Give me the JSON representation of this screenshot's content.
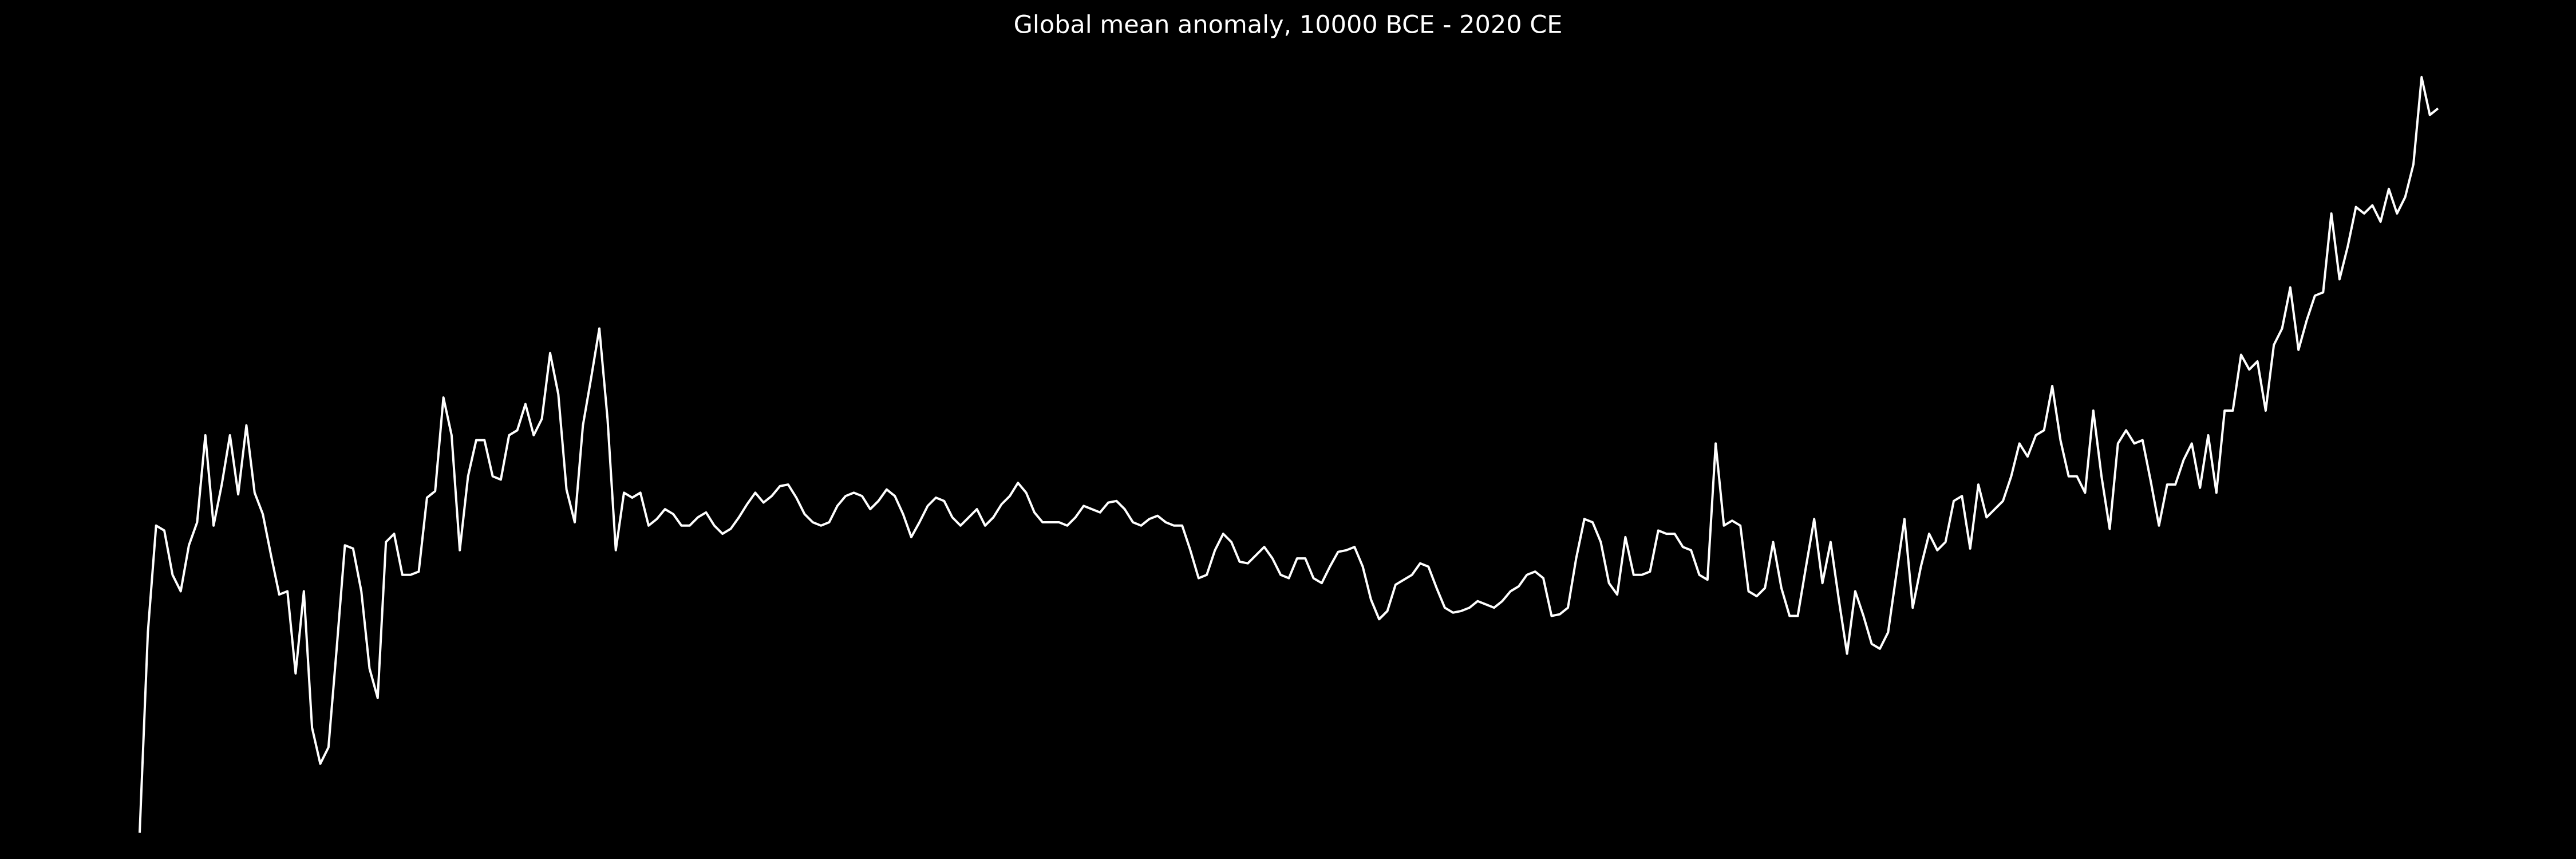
{
  "chart_data": {
    "type": "line",
    "title": "Global mean anomaly, 10000 BCE - 2020 CE",
    "color": "#ffffff",
    "xlim": [
      -10000,
      2020
    ],
    "ylim": [
      -2.23,
      3
    ],
    "values": [
      -2.07,
      -0.85,
      -0.2,
      -0.23,
      -0.5,
      -0.6,
      -0.32,
      -0.18,
      0.35,
      -0.2,
      0.05,
      0.35,
      -0.01,
      0.41,
      0,
      -0.13,
      -0.38,
      -0.62,
      -0.6,
      -1.1,
      -0.6,
      -1.43,
      -1.65,
      -1.55,
      -0.95,
      -0.32,
      -0.34,
      -0.6,
      -1.07,
      -1.25,
      -0.3,
      -0.25,
      -0.5,
      -0.5,
      -0.48,
      -0.03,
      0.01,
      0.58,
      0.35,
      -0.35,
      0.1,
      0.32,
      0.32,
      0.1,
      0.08,
      0.35,
      0.38,
      0.54,
      0.35,
      0.45,
      0.85,
      0.6,
      0.02,
      -0.18,
      0.41,
      0.7,
      1.0,
      0.45,
      -0.35,
      0,
      -0.03,
      0,
      -0.2,
      -0.16,
      -0.1,
      -0.13,
      -0.2,
      -0.2,
      -0.15,
      -0.12,
      -0.2,
      -0.25,
      -0.22,
      -0.15,
      -0.07,
      0,
      -0.06,
      -0.02,
      0.04,
      0.05,
      -0.03,
      -0.13,
      -0.18,
      -0.2,
      -0.18,
      -0.08,
      -0.02,
      0,
      -0.02,
      -0.1,
      -0.05,
      0.02,
      -0.02,
      -0.13,
      -0.27,
      -0.18,
      -0.08,
      -0.03,
      -0.05,
      -0.15,
      -0.2,
      -0.15,
      -0.1,
      -0.2,
      -0.15,
      -0.07,
      -0.02,
      0.06,
      0,
      -0.12,
      -0.18,
      -0.18,
      -0.18,
      -0.2,
      -0.15,
      -0.08,
      -0.1,
      -0.12,
      -0.06,
      -0.05,
      -0.1,
      -0.18,
      -0.2,
      -0.16,
      -0.14,
      -0.18,
      -0.2,
      -0.2,
      -0.35,
      -0.52,
      -0.5,
      -0.35,
      -0.25,
      -0.3,
      -0.42,
      -0.43,
      -0.38,
      -0.33,
      -0.4,
      -0.5,
      -0.52,
      -0.4,
      -0.4,
      -0.52,
      -0.55,
      -0.45,
      -0.36,
      -0.35,
      -0.33,
      -0.45,
      -0.65,
      -0.77,
      -0.72,
      -0.56,
      -0.53,
      -0.5,
      -0.43,
      -0.45,
      -0.58,
      -0.7,
      -0.73,
      -0.72,
      -0.7,
      -0.66,
      -0.68,
      -0.7,
      -0.66,
      -0.6,
      -0.57,
      -0.5,
      -0.48,
      -0.52,
      -0.75,
      -0.74,
      -0.7,
      -0.4,
      -0.16,
      -0.18,
      -0.3,
      -0.55,
      -0.62,
      -0.27,
      -0.5,
      -0.5,
      -0.48,
      -0.23,
      -0.25,
      -0.25,
      -0.33,
      -0.35,
      -0.5,
      -0.53,
      0.3,
      -0.2,
      -0.17,
      -0.2,
      -0.6,
      -0.63,
      -0.58,
      -0.3,
      -0.58,
      -0.75,
      -0.75,
      -0.45,
      -0.16,
      -0.55,
      -0.3,
      -0.65,
      -0.98,
      -0.6,
      -0.75,
      -0.92,
      -0.95,
      -0.85,
      -0.5,
      -0.16,
      -0.7,
      -0.45,
      -0.25,
      -0.35,
      -0.3,
      -0.05,
      -0.02,
      -0.34,
      0.05,
      -0.15,
      -0.1,
      -0.05,
      0.1,
      0.3,
      0.22,
      0.35,
      0.38,
      0.65,
      0.32,
      0.1,
      0.1,
      0,
      0.5,
      0.1,
      -0.22,
      0.3,
      0.38,
      0.3,
      0.32,
      0.07,
      -0.2,
      0.05,
      0.05,
      0.2,
      0.3,
      0.03,
      0.35,
      0,
      0.5,
      0.5,
      0.84,
      0.75,
      0.8,
      0.5,
      0.9,
      1.0,
      1.25,
      0.87,
      1.05,
      1.2,
      1.22,
      1.7,
      1.3,
      1.5,
      1.74,
      1.7,
      1.75,
      1.65,
      1.85,
      1.7,
      1.8,
      2.0,
      2.53,
      2.3,
      2.34
    ]
  }
}
